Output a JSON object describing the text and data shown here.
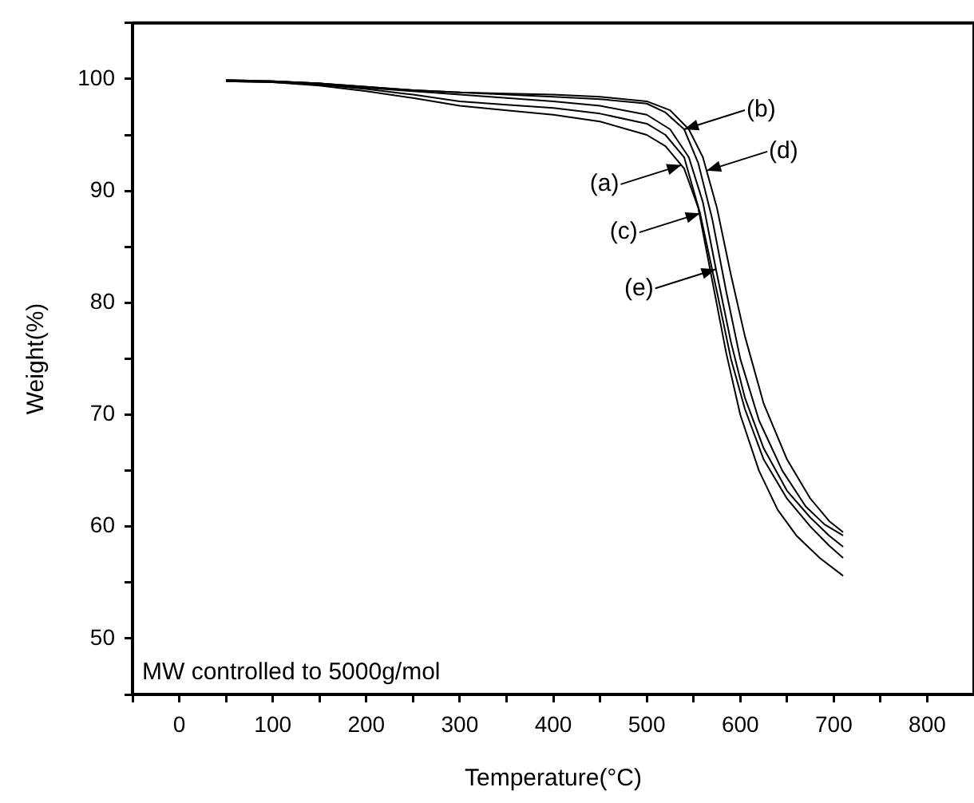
{
  "chart_data": {
    "type": "line",
    "xlabel": "Temperature(°C)",
    "ylabel": "Weight(%)",
    "xlim": [
      -50,
      850
    ],
    "ylim": [
      45,
      105
    ],
    "xticks": [
      {
        "value": -50,
        "label": null
      },
      0,
      {
        "value": 50,
        "label": null
      },
      100,
      {
        "value": 150,
        "label": null
      },
      200,
      {
        "value": 250,
        "label": null
      },
      300,
      {
        "value": 350,
        "label": null
      },
      400,
      {
        "value": 450,
        "label": null
      },
      500,
      {
        "value": 550,
        "label": null
      },
      600,
      {
        "value": 650,
        "label": null
      },
      700,
      {
        "value": 750,
        "label": null
      },
      800
    ],
    "yticks": [
      {
        "value": 45,
        "label": null
      },
      50,
      {
        "value": 55,
        "label": null
      },
      60,
      {
        "value": 65,
        "label": null
      },
      70,
      {
        "value": 75,
        "label": null
      },
      80,
      {
        "value": 85,
        "label": null
      },
      90,
      {
        "value": 95,
        "label": null
      },
      100,
      {
        "value": 105,
        "label": null
      }
    ],
    "grid": false,
    "legend": false,
    "marker": "none",
    "line_style": "solid",
    "series": [
      {
        "color": "#000000",
        "x": [
          50,
          100,
          150,
          200,
          250,
          300,
          350,
          400,
          450,
          500,
          520,
          540,
          555,
          570,
          585,
          600,
          620,
          640,
          660,
          685,
          710
        ],
        "values": [
          99.8,
          99.7,
          99.4,
          98.9,
          98.3,
          97.6,
          97.2,
          96.8,
          96.2,
          95.0,
          94.0,
          92.0,
          88.5,
          82,
          75.5,
          70,
          65,
          61.5,
          59.2,
          57.2,
          55.6
        ]
      },
      {
        "color": "#000000",
        "x": [
          50,
          100,
          150,
          200,
          250,
          300,
          350,
          400,
          450,
          500,
          520,
          540,
          555,
          570,
          585,
          600,
          620,
          645,
          670,
          690,
          710
        ],
        "values": [
          99.9,
          99.8,
          99.6,
          99.3,
          99.0,
          98.8,
          98.6,
          98.4,
          98.2,
          97.8,
          97.0,
          95.5,
          92.5,
          87.5,
          81,
          75,
          69.5,
          65,
          61.8,
          60.2,
          59.2
        ]
      },
      {
        "color": "#000000",
        "x": [
          50,
          100,
          150,
          200,
          250,
          300,
          350,
          400,
          450,
          500,
          520,
          540,
          557,
          575,
          590,
          605,
          625,
          650,
          675,
          695,
          710
        ],
        "values": [
          99.8,
          99.7,
          99.5,
          99.1,
          98.6,
          98.0,
          97.7,
          97.4,
          96.9,
          96.0,
          95.0,
          93.0,
          88,
          81,
          75,
          70.5,
          66,
          62.5,
          60,
          58.3,
          57.2
        ]
      },
      {
        "color": "#000000",
        "x": [
          50,
          100,
          150,
          200,
          250,
          300,
          350,
          400,
          450,
          500,
          525,
          545,
          560,
          575,
          590,
          605,
          625,
          650,
          675,
          695,
          710
        ],
        "values": [
          99.9,
          99.8,
          99.6,
          99.3,
          99.0,
          98.8,
          98.7,
          98.6,
          98.4,
          98.0,
          97.2,
          95.5,
          93,
          88.5,
          82.5,
          77,
          71,
          66,
          62.5,
          60.5,
          59.5
        ]
      },
      {
        "color": "#000000",
        "x": [
          50,
          100,
          150,
          200,
          250,
          300,
          350,
          400,
          450,
          500,
          525,
          545,
          560,
          574,
          590,
          605,
          625,
          650,
          675,
          695,
          710
        ],
        "values": [
          99.8,
          99.8,
          99.6,
          99.2,
          98.9,
          98.6,
          98.3,
          98.0,
          97.6,
          96.8,
          95.5,
          93.0,
          89,
          83,
          76.5,
          71.5,
          67,
          63.2,
          60.8,
          59.2,
          58.2
        ]
      }
    ],
    "annotations": [
      {
        "text": "(a)",
        "x": 537,
        "y": 92.3
      },
      {
        "text": "(b)",
        "x": 540,
        "y": 95.5
      },
      {
        "text": "(c)",
        "x": 557,
        "y": 88
      },
      {
        "text": "(d)",
        "x": 564,
        "y": 91.8
      },
      {
        "text": "(e)",
        "x": 574,
        "y": 83
      },
      "MW controlled to 5000g/mol"
    ]
  }
}
